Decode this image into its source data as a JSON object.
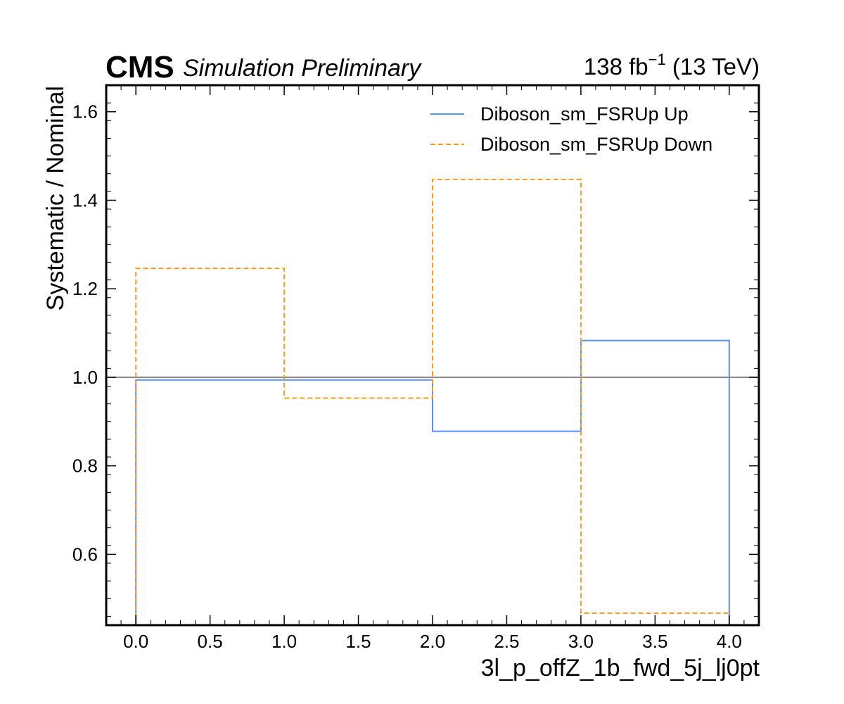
{
  "header": {
    "experiment": "CMS",
    "status": "Simulation Preliminary",
    "lumi_value": "138 fb",
    "lumi_exponent": "−1",
    "energy": " (13 TeV)"
  },
  "chart_data": {
    "type": "line",
    "style": "step histogram",
    "xlabel": "3l_p_offZ_1b_fwd_5j_lj0pt",
    "ylabel": "Systematic / Nominal",
    "xlim": [
      -0.2,
      4.2
    ],
    "ylim": [
      0.44,
      1.66
    ],
    "x_ticks": [
      "0.0",
      "0.5",
      "1.0",
      "1.5",
      "2.0",
      "2.5",
      "3.0",
      "3.5",
      "4.0"
    ],
    "x_tick_values": [
      0.0,
      0.5,
      1.0,
      1.5,
      2.0,
      2.5,
      3.0,
      3.5,
      4.0
    ],
    "y_ticks": [
      "0.6",
      "0.8",
      "1.0",
      "1.2",
      "1.4",
      "1.6"
    ],
    "y_tick_values": [
      0.6,
      0.8,
      1.0,
      1.2,
      1.4,
      1.6
    ],
    "bin_edges": [
      0,
      1,
      2,
      3,
      4
    ],
    "reference_line": 1.0,
    "grid": false,
    "legend_position": "top-right",
    "series": [
      {
        "name": "Diboson_sm_FSRUp Up",
        "values": [
          0.994,
          0.994,
          0.878,
          1.083
        ],
        "color": "#5790fc",
        "dash": "solid"
      },
      {
        "name": "Diboson_sm_FSRUp Down",
        "values": [
          1.246,
          0.953,
          1.447,
          0.467
        ],
        "color": "#f89c20",
        "dash": "dashed"
      }
    ],
    "reference_color": "#808080"
  }
}
